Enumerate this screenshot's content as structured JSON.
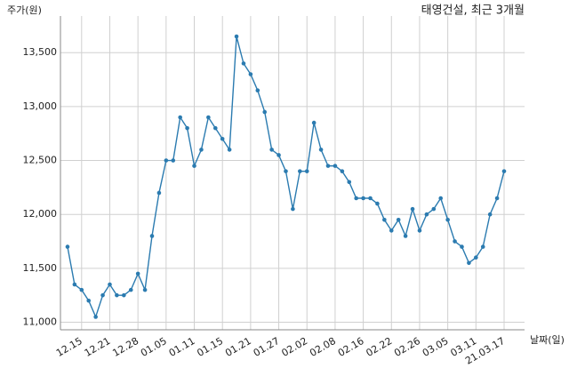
{
  "chart_data": {
    "type": "line",
    "title": "태영건설, 최근 3개월",
    "y_label": "주가(원)",
    "x_label": "날짜(일)",
    "categories": [
      null,
      null,
      "12.15",
      null,
      null,
      null,
      "12.21",
      null,
      null,
      null,
      "12.28",
      null,
      null,
      null,
      "01.05",
      null,
      null,
      null,
      "01.11",
      null,
      null,
      null,
      "01.15",
      null,
      null,
      null,
      "01.21",
      null,
      null,
      null,
      "01.27",
      null,
      null,
      null,
      "02.02",
      null,
      null,
      null,
      "02.08",
      null,
      null,
      null,
      "02.16",
      null,
      null,
      null,
      "02.22",
      null,
      null,
      null,
      "02.26",
      null,
      null,
      null,
      "03.05",
      null,
      null,
      null,
      "03.11",
      null,
      null,
      null,
      "21.03.17"
    ],
    "series": [
      {
        "name": "태영건설",
        "color": "#2b7bb0",
        "values": [
          11700,
          11350,
          11300,
          11200,
          11050,
          11250,
          11350,
          11250,
          11250,
          11300,
          11450,
          11300,
          11800,
          12200,
          12500,
          12500,
          12900,
          12800,
          12450,
          12600,
          12900,
          12800,
          12700,
          12600,
          13650,
          13400,
          13300,
          13150,
          12950,
          12600,
          12550,
          12400,
          12050,
          12400,
          12400,
          12850,
          12600,
          12450,
          12450,
          12400,
          12300,
          12150,
          12150,
          12150,
          12100,
          11950,
          11850,
          11950,
          11800,
          12050,
          11850,
          12000,
          12050,
          12150,
          11950,
          11750,
          11700,
          11550,
          11600,
          11700,
          12000,
          12150,
          12400
        ]
      }
    ],
    "ylim": [
      10930,
      13840
    ],
    "yticks": [
      {
        "value": 11000,
        "label": "11,000"
      },
      {
        "value": 11500,
        "label": "11,500"
      },
      {
        "value": 12000,
        "label": "12,000"
      },
      {
        "value": 12500,
        "label": "12,500"
      },
      {
        "value": 13000,
        "label": "13,000"
      },
      {
        "value": 13500,
        "label": "13,500"
      }
    ],
    "grid": true
  }
}
